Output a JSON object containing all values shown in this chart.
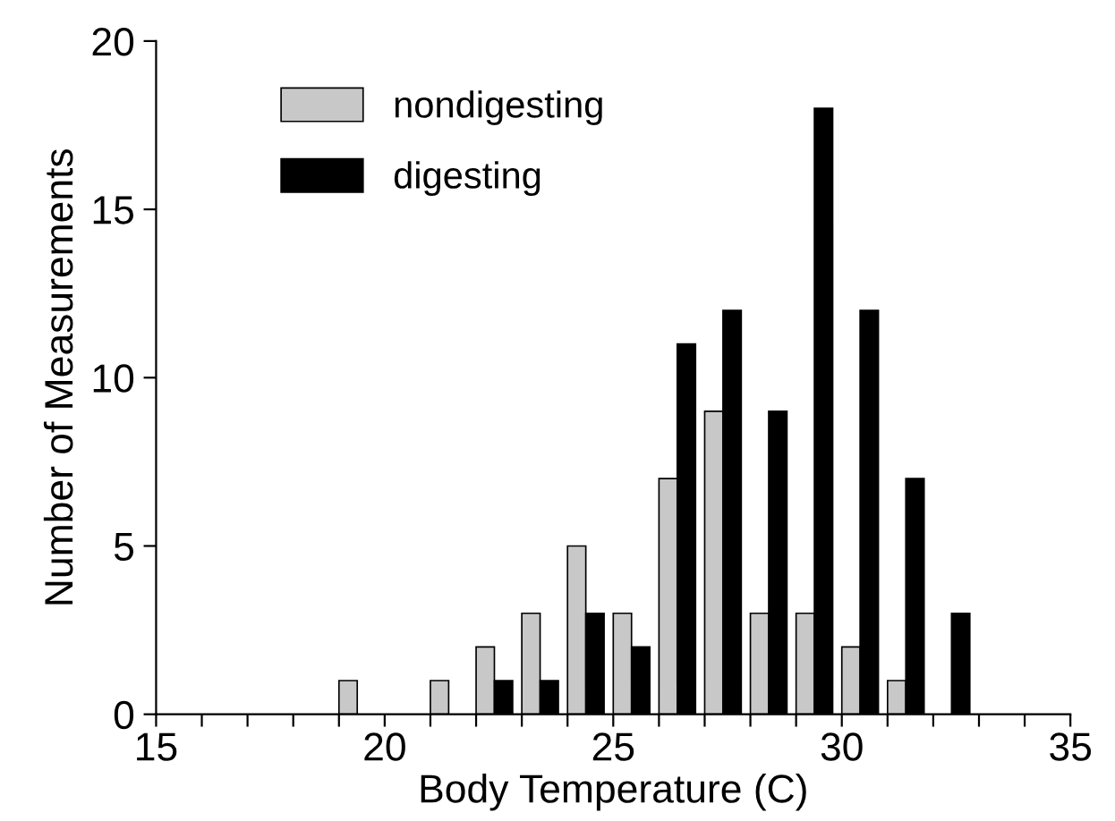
{
  "chart_data": {
    "type": "bar",
    "xlabel": "Body Temperature (C)",
    "ylabel": "Number of Measurements",
    "series": [
      {
        "name": "nondigesting",
        "color": "#c8c8c8",
        "x": [
          19.2,
          21.2,
          22.2,
          23.2,
          24.2,
          25.2,
          26.2,
          27.2,
          28.2,
          29.2,
          30.2,
          31.2
        ],
        "values": [
          1,
          1,
          2,
          3,
          5,
          3,
          7,
          9,
          3,
          3,
          2,
          1
        ]
      },
      {
        "name": "digesting",
        "color": "#000000",
        "x": [
          22.6,
          23.6,
          24.6,
          25.6,
          26.6,
          27.6,
          28.6,
          29.6,
          30.6,
          31.6,
          32.6
        ],
        "values": [
          1,
          1,
          3,
          2,
          11,
          12,
          9,
          18,
          12,
          7,
          3
        ]
      }
    ],
    "xlim": [
      15,
      35
    ],
    "xticks": [
      15,
      {
        "value": 16,
        "label": null
      },
      {
        "value": 17,
        "label": null
      },
      {
        "value": 18,
        "label": null
      },
      {
        "value": 19,
        "label": null
      },
      20,
      {
        "value": 21,
        "label": null
      },
      {
        "value": 22,
        "label": null
      },
      {
        "value": 23,
        "label": null
      },
      {
        "value": 24,
        "label": null
      },
      25,
      {
        "value": 26,
        "label": null
      },
      {
        "value": 27,
        "label": null
      },
      {
        "value": 28,
        "label": null
      },
      {
        "value": 29,
        "label": null
      },
      30,
      {
        "value": 31,
        "label": null
      },
      {
        "value": 32,
        "label": null
      },
      {
        "value": 33,
        "label": null
      },
      {
        "value": 34,
        "label": null
      },
      35
    ],
    "ylim": [
      0,
      20
    ],
    "yticks": [
      0,
      5,
      10,
      15,
      20
    ],
    "grid": false,
    "legend": "top left"
  }
}
